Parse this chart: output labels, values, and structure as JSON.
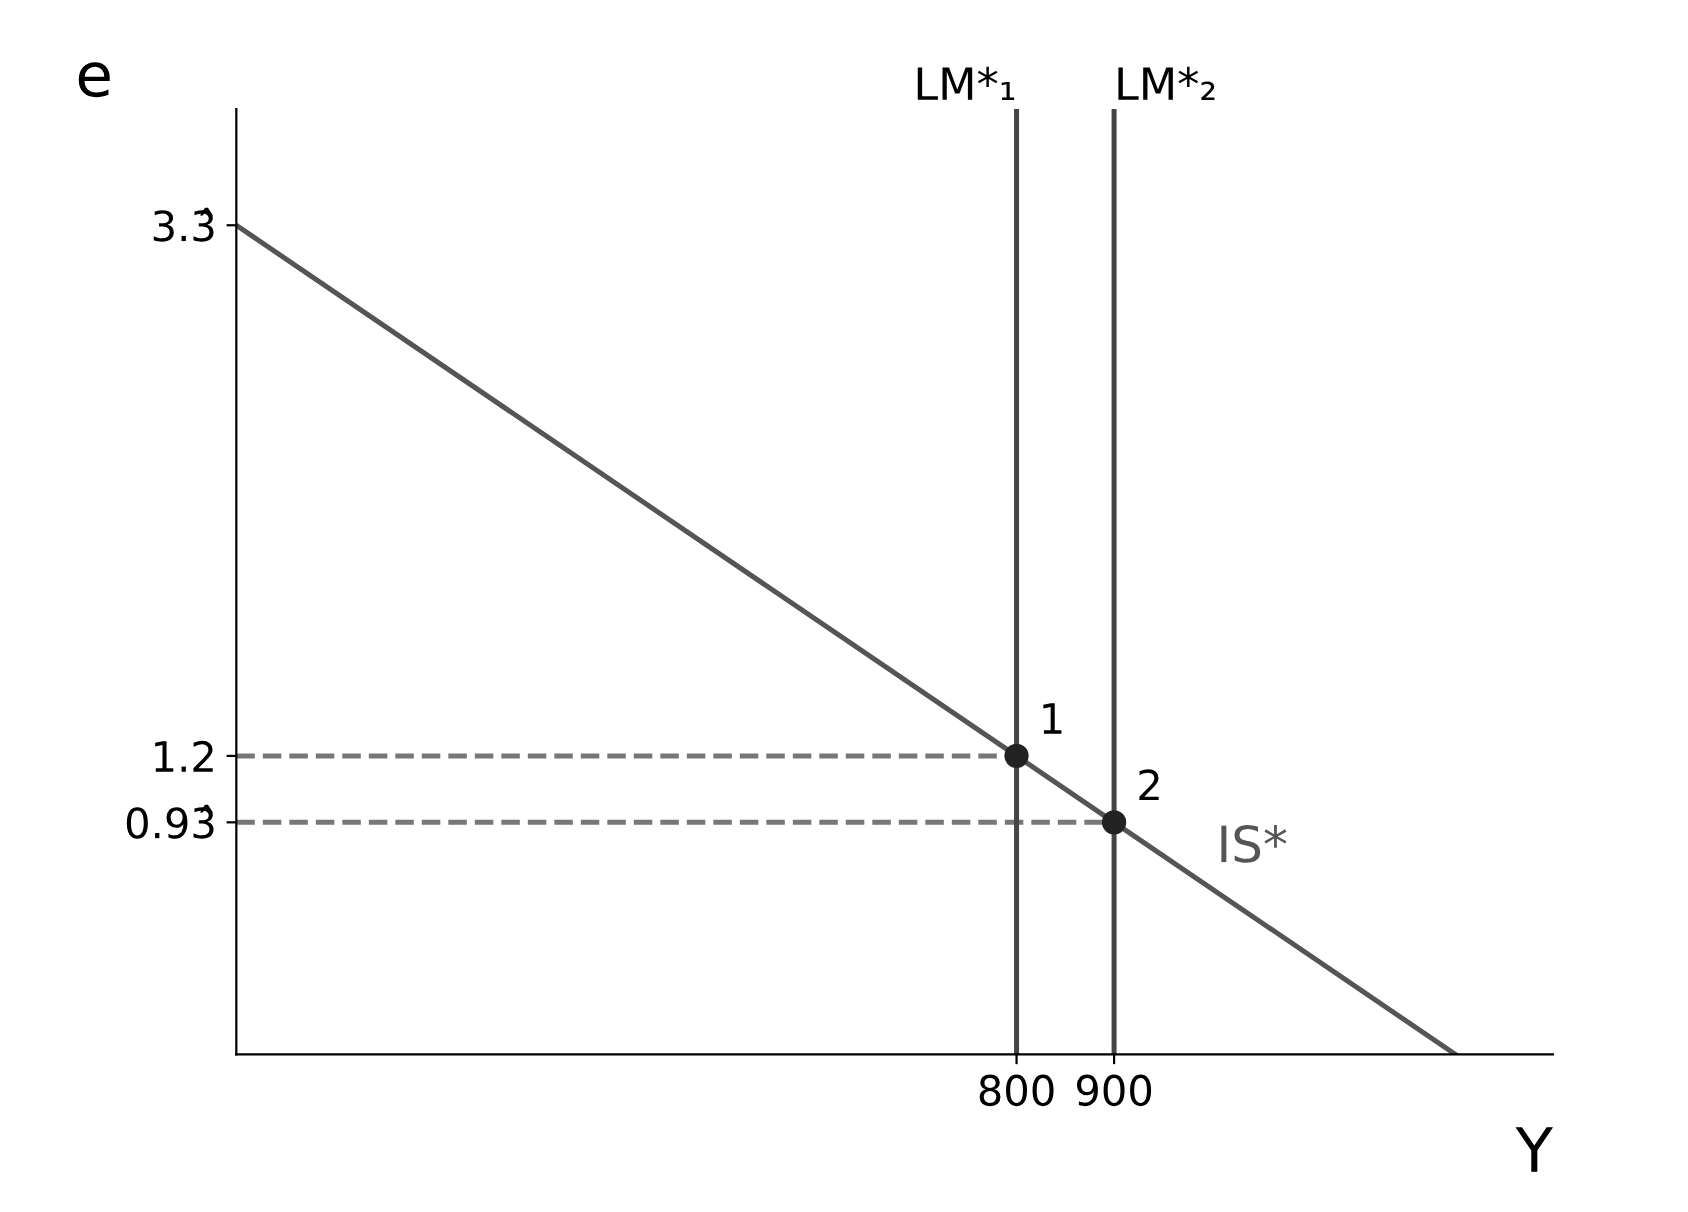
{
  "chart_data": {
    "type": "line",
    "xlabel": "Y",
    "ylabel": "e",
    "xlim": [
      0,
      1350
    ],
    "ylim": [
      0,
      3.8
    ],
    "xticks": [
      800,
      900
    ],
    "yticks": [
      {
        "value": 0.933,
        "label": "0.93̂"
      },
      1.2,
      {
        "value": 3.333,
        "label": "3.3̂"
      }
    ],
    "series": [
      {
        "name": "IS*",
        "color": "#555555",
        "x": [
          0,
          800,
          900,
          1250
        ],
        "values": [
          3.333,
          1.2,
          0.933,
          0
        ]
      },
      {
        "type": "line",
        "line_style": "dashed",
        "color": "#777777",
        "x": [
          0,
          800
        ],
        "values": [
          1.2,
          1.2
        ]
      },
      {
        "type": "line",
        "line_style": "dashed",
        "color": "#777777",
        "x": [
          0,
          900
        ],
        "values": [
          0.933,
          0.933
        ]
      },
      {
        "type": "scatter",
        "marker": "circle",
        "color": "#222222",
        "x": [
          800,
          900
        ],
        "values": [
          1.2,
          0.933
        ]
      }
    ],
    "ref_lines": [
      {
        "axis": "x",
        "value": 800,
        "label": "LM*₁",
        "color": "#444444"
      },
      {
        "axis": "x",
        "value": 900,
        "label": "LM*₂",
        "color": "#444444"
      }
    ],
    "annotations": [
      {
        "text": "1",
        "x": 800,
        "y": 1.2
      },
      {
        "text": "2",
        "x": 900,
        "y": 0.933
      }
    ],
    "grid": false
  }
}
